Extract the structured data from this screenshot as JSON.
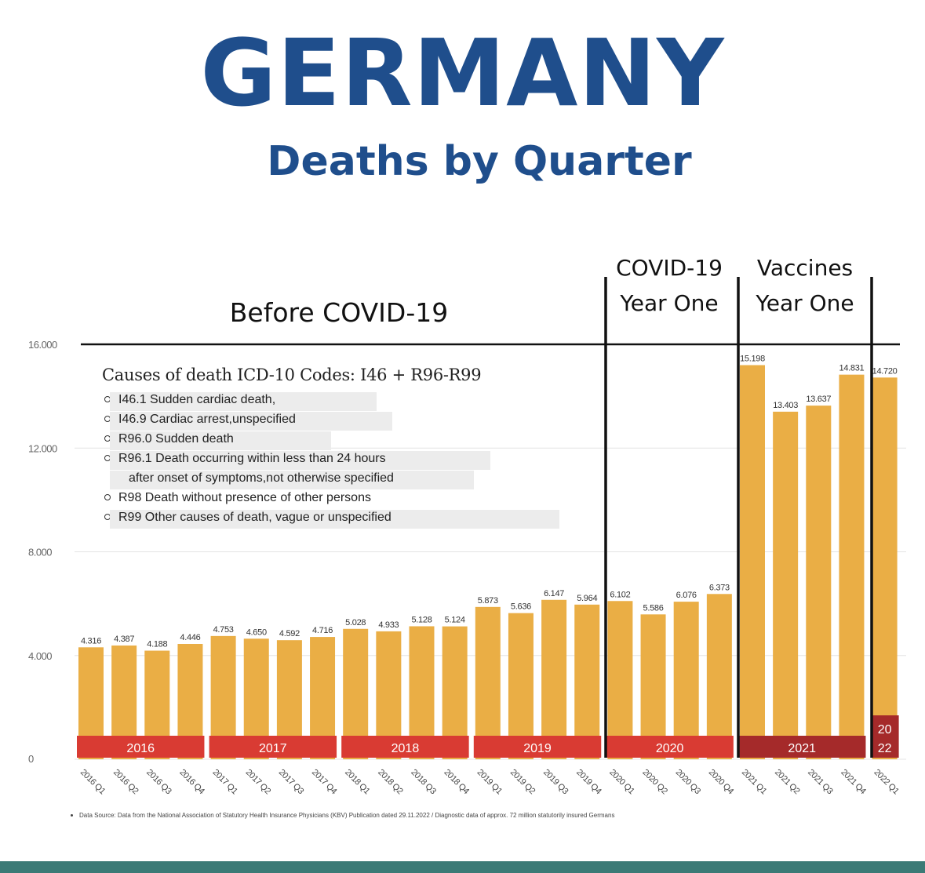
{
  "title": "GERMANY",
  "subtitle": "Deaths by Quarter",
  "chart_data": {
    "type": "bar",
    "title": "GERMANY Deaths by Quarter",
    "ylim": [
      0,
      16000
    ],
    "yticks": [
      0,
      4000,
      8000,
      12000,
      16000
    ],
    "ytick_labels": [
      "0",
      "4.000",
      "8.000",
      "12.000",
      "16.000"
    ],
    "categories": [
      "2016 Q1",
      "2016 Q2",
      "2016 Q3",
      "2016 Q4",
      "2017 Q1",
      "2017 Q2",
      "2017 Q3",
      "2017 Q4",
      "2018 Q1",
      "2018 Q2",
      "2018 Q3",
      "2018 Q4",
      "2019 Q1",
      "2019 Q2",
      "2019 Q3",
      "2019 Q4",
      "2020 Q1",
      "2020 Q2",
      "2020 Q3",
      "2020 Q4",
      "2021 Q1",
      "2021 Q2",
      "2021 Q3",
      "2021 Q4",
      "2022 Q1"
    ],
    "values": [
      4316,
      4387,
      4188,
      4446,
      4753,
      4650,
      4592,
      4716,
      5028,
      4933,
      5128,
      5124,
      5873,
      5636,
      6147,
      5964,
      6102,
      5586,
      6076,
      6373,
      15198,
      13403,
      13637,
      14831,
      14720
    ],
    "value_labels": [
      "4.316",
      "4.387",
      "4.188",
      "4.446",
      "4.753",
      "4.650",
      "4.592",
      "4.716",
      "5.028",
      "4.933",
      "5.128",
      "5.124",
      "5.873",
      "5.636",
      "6.147",
      "5.964",
      "6.102",
      "5.586",
      "6.076",
      "6.373",
      "15.198",
      "13.403",
      "13.637",
      "14.831",
      "14.720"
    ],
    "bar_color": "#eaae45",
    "year_bands": [
      {
        "label": "2016",
        "start": 0,
        "end": 3,
        "color": "#d93b33"
      },
      {
        "label": "2017",
        "start": 4,
        "end": 7,
        "color": "#d93b33"
      },
      {
        "label": "2018",
        "start": 8,
        "end": 11,
        "color": "#d93b33"
      },
      {
        "label": "2019",
        "start": 12,
        "end": 15,
        "color": "#d93b33"
      },
      {
        "label": "2020",
        "start": 16,
        "end": 19,
        "color": "#d93b33"
      },
      {
        "label": "2021",
        "start": 20,
        "end": 23,
        "color": "#a52a2a"
      },
      {
        "label_lines": [
          "20",
          "22"
        ],
        "start": 24,
        "end": 24,
        "color": "#a52a2a"
      }
    ],
    "annotations": {
      "before": "Before COVID-19",
      "covid_line1": "COVID-19",
      "covid_line2": "Year One",
      "vacc_line1": "Vaccines",
      "vacc_line2": "Year One"
    }
  },
  "legend": {
    "title": "Causes of death ICD-10 Codes: I46 + R96-R99",
    "items": [
      {
        "text": "I46.1 Sudden cardiac death,"
      },
      {
        "text": "I46.9 Cardiac arrest,unspecified"
      },
      {
        "text": "R96.0 Sudden death"
      },
      {
        "text": "R96.1 Death occurring within less than 24 hours"
      },
      {
        "text": "after onset of symptoms,not otherwise specified"
      },
      {
        "text": "R98 Death without presence of other persons"
      },
      {
        "text": "R99 Other causes of death, vague or unspecified"
      }
    ]
  },
  "source": "Data Source: Data from the National Association of Statutory Health Insurance Physicians (KBV) Publication dated 29.11.2022 / Diagnostic data of approx. 72 million statutorily insured Germans",
  "colors": {
    "title": "#1f4e8c",
    "bottom_bar": "#3b7a76"
  }
}
